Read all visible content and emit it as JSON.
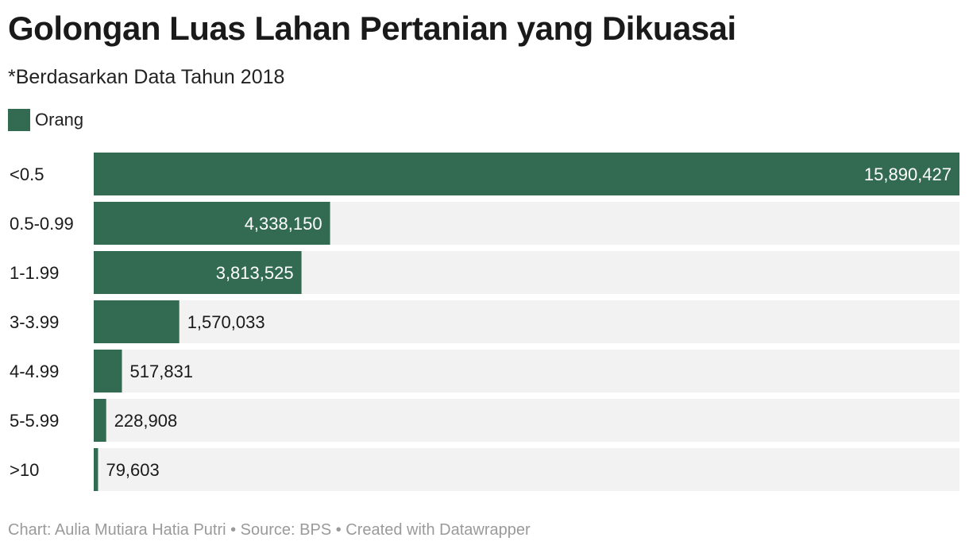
{
  "title": "Golongan Luas Lahan Pertanian yang Dikuasai",
  "subtitle": "*Berdasarkan Data Tahun 2018",
  "footer": "Chart: Aulia Mutiara Hatia Putri • Source: BPS • Created with Datawrapper",
  "colors": {
    "bar": "#336b52",
    "track": "#f2f2f2",
    "label_inside": "#ffffff",
    "label_outside": "#1a1a1a"
  },
  "chart_data": {
    "type": "bar",
    "orientation": "horizontal",
    "categories": [
      "<0.5",
      "0.5-0.99",
      "1-1.99",
      "3-3.99",
      "4-4.99",
      "5-5.99",
      ">10"
    ],
    "series": [
      {
        "name": "Orang",
        "values": [
          15890427,
          4338150,
          3813525,
          1570033,
          517831,
          228908,
          79603
        ],
        "value_labels": [
          "15,890,427",
          "4,338,150",
          "3,813,525",
          "1,570,033",
          "517,831",
          "228,908",
          "79,603"
        ]
      }
    ],
    "xlim": [
      0,
      15890427
    ],
    "grid": false,
    "legend_position": "top-left"
  }
}
